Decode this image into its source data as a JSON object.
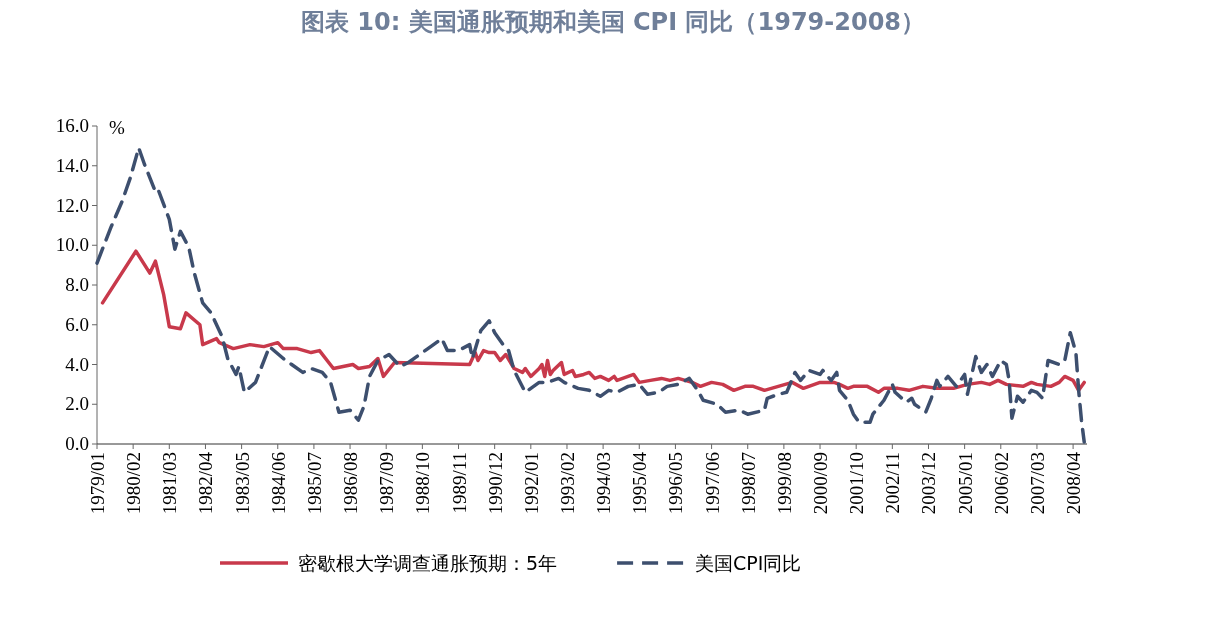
{
  "chart_data": {
    "type": "line",
    "title": "图表 10: 美国通胀预期和美国 CPI 同比（1979-2008）",
    "ylabel": "%",
    "legend": "bottom",
    "grid": false,
    "marker": "none",
    "xlim": [
      "1979-01",
      "2008-09"
    ],
    "ylim": [
      0,
      16
    ],
    "yticks": [
      {
        "value": 0,
        "label": "0.0"
      },
      {
        "value": 2,
        "label": "2.0"
      },
      {
        "value": 4,
        "label": "4.0"
      },
      {
        "value": 6,
        "label": "6.0"
      },
      {
        "value": 8,
        "label": "8.0"
      },
      {
        "value": 10,
        "label": "10.0"
      },
      {
        "value": 12,
        "label": "12.0"
      },
      {
        "value": 14,
        "label": "14.0"
      },
      {
        "value": 16,
        "label": "16.0"
      }
    ],
    "xticks": [
      {
        "value": "1979-01",
        "label": "1979/01"
      },
      {
        "value": "1980-02",
        "label": "1980/02"
      },
      {
        "value": "1981-03",
        "label": "1981/03"
      },
      {
        "value": "1982-04",
        "label": "1982/04"
      },
      {
        "value": "1983-05",
        "label": "1983/05"
      },
      {
        "value": "1984-06",
        "label": "1984/06"
      },
      {
        "value": "1985-07",
        "label": "1985/07"
      },
      {
        "value": "1986-08",
        "label": "1986/08"
      },
      {
        "value": "1987-09",
        "label": "1987/09"
      },
      {
        "value": "1988-10",
        "label": "1988/10"
      },
      {
        "value": "1989-11",
        "label": "1989/11"
      },
      {
        "value": "1990-12",
        "label": "1990/12"
      },
      {
        "value": "1992-01",
        "label": "1992/01"
      },
      {
        "value": "1993-02",
        "label": "1993/02"
      },
      {
        "value": "1994-03",
        "label": "1994/03"
      },
      {
        "value": "1995-04",
        "label": "1995/04"
      },
      {
        "value": "1996-05",
        "label": "1996/05"
      },
      {
        "value": "1997-06",
        "label": "1997/06"
      },
      {
        "value": "1998-07",
        "label": "1998/07"
      },
      {
        "value": "1999-08",
        "label": "1999/08"
      },
      {
        "value": "2000-09",
        "label": "2000/09"
      },
      {
        "value": "2001-10",
        "label": "2001/10"
      },
      {
        "value": "2002-11",
        "label": "2002/11"
      },
      {
        "value": "2003-12",
        "label": "2003/12"
      },
      {
        "value": "2005-01",
        "label": "2005/01"
      },
      {
        "value": "2006-02",
        "label": "2006/02"
      },
      {
        "value": "2007-03",
        "label": "2007/03"
      },
      {
        "value": "2008-04",
        "label": "2008/04"
      }
    ],
    "series": [
      {
        "name": "密歇根大学调查通胀预期：5年",
        "color": "#c8394b",
        "line_style": "solid",
        "x": [
          "1979-03",
          "1980-03",
          "1980-08",
          "1980-10",
          "1981-01",
          "1981-03",
          "1981-07",
          "1981-09",
          "1982-02",
          "1982-03",
          "1982-08",
          "1982-09",
          "1983-02",
          "1983-08",
          "1984-01",
          "1984-06",
          "1984-08",
          "1985-01",
          "1985-06",
          "1985-09",
          "1986-02",
          "1986-09",
          "1986-11",
          "1987-03",
          "1987-06",
          "1987-08",
          "1987-12",
          "1990-03",
          "1990-05",
          "1990-06",
          "1990-08",
          "1990-10",
          "1990-12",
          "1991-02",
          "1991-04",
          "1991-07",
          "1991-10",
          "1991-11",
          "1992-01",
          "1992-04",
          "1992-05",
          "1992-06",
          "1992-07",
          "1992-08",
          "1992-09",
          "1992-12",
          "1993-01",
          "1993-04",
          "1993-05",
          "1993-08",
          "1993-10",
          "1993-12",
          "1994-02",
          "1994-05",
          "1994-07",
          "1994-08",
          "1995-02",
          "1995-04",
          "1995-08",
          "1995-12",
          "1996-03",
          "1996-06",
          "1996-11",
          "1997-02",
          "1997-06",
          "1997-10",
          "1998-02",
          "1998-06",
          "1998-09",
          "1999-01",
          "1999-06",
          "1999-11",
          "2000-03",
          "2000-09",
          "2001-02",
          "2001-04",
          "2001-07",
          "2001-09",
          "2002-02",
          "2002-06",
          "2002-08",
          "2003-01",
          "2003-05",
          "2003-10",
          "2004-03",
          "2004-09",
          "2005-02",
          "2005-07",
          "2005-10",
          "2006-01",
          "2006-04",
          "2006-10",
          "2007-01",
          "2007-03",
          "2007-08",
          "2007-11",
          "2008-01",
          "2008-04",
          "2008-06",
          "2008-08"
        ],
        "values": [
          7.1,
          9.7,
          8.6,
          9.2,
          7.5,
          5.9,
          5.8,
          6.6,
          6.0,
          5.0,
          5.3,
          5.1,
          4.8,
          5.0,
          4.9,
          5.1,
          4.8,
          4.8,
          4.6,
          4.7,
          3.8,
          4.0,
          3.8,
          3.9,
          4.3,
          3.4,
          4.1,
          4.0,
          4.6,
          4.2,
          4.7,
          4.6,
          4.6,
          4.2,
          4.5,
          3.8,
          3.6,
          3.8,
          3.4,
          3.8,
          4.0,
          3.4,
          4.2,
          3.5,
          3.7,
          4.1,
          3.5,
          3.7,
          3.4,
          3.5,
          3.6,
          3.3,
          3.4,
          3.2,
          3.4,
          3.2,
          3.5,
          3.1,
          3.2,
          3.3,
          3.2,
          3.3,
          3.1,
          2.9,
          3.1,
          3.0,
          2.7,
          2.9,
          2.9,
          2.7,
          2.9,
          3.1,
          2.8,
          3.1,
          3.1,
          3.0,
          2.8,
          2.9,
          2.9,
          2.6,
          2.8,
          2.8,
          2.7,
          2.9,
          2.8,
          2.8,
          3.0,
          3.1,
          3.0,
          3.2,
          3.0,
          2.9,
          3.1,
          3.0,
          2.9,
          3.1,
          3.4,
          3.2,
          2.7,
          3.1
        ]
      },
      {
        "name": "美国CPI同比",
        "color": "#3d4f6e",
        "line_style": "dashed",
        "x": [
          "1979-01",
          "1979-06",
          "1979-10",
          "1980-01",
          "1980-04",
          "1980-06",
          "1980-10",
          "1980-11",
          "1981-03",
          "1981-05",
          "1981-07",
          "1981-10",
          "1981-12",
          "1982-03",
          "1982-06",
          "1982-10",
          "1982-12",
          "1983-03",
          "1983-04",
          "1983-06",
          "1983-10",
          "1984-03",
          "1984-08",
          "1984-11",
          "1985-03",
          "1985-06",
          "1985-10",
          "1986-01",
          "1986-04",
          "1986-08",
          "1986-11",
          "1987-01",
          "1987-03",
          "1987-06",
          "1987-10",
          "1988-02",
          "1988-05",
          "1988-12",
          "1989-05",
          "1989-07",
          "1989-11",
          "1990-03",
          "1990-04",
          "1990-07",
          "1990-10",
          "1990-12",
          "1991-03",
          "1991-05",
          "1991-07",
          "1991-11",
          "1992-04",
          "1992-07",
          "1992-11",
          "1993-01",
          "1993-06",
          "1993-10",
          "1994-02",
          "1994-05",
          "1994-08",
          "1994-12",
          "1995-04",
          "1995-07",
          "1995-11",
          "1996-02",
          "1996-06",
          "1996-10",
          "1997-01",
          "1997-03",
          "1997-08",
          "1997-11",
          "1998-04",
          "1998-07",
          "1999-01",
          "1999-02",
          "1999-06",
          "1999-09",
          "1999-12",
          "2000-02",
          "2000-05",
          "2000-09",
          "2000-10",
          "2001-01",
          "2001-03",
          "2001-04",
          "2001-07",
          "2001-09",
          "2001-11",
          "2002-03",
          "2002-04",
          "2002-08",
          "2002-11",
          "2002-12",
          "2003-04",
          "2003-06",
          "2003-07",
          "2003-11",
          "2004-01",
          "2004-03",
          "2004-04",
          "2004-07",
          "2004-10",
          "2005-01",
          "2005-02",
          "2005-05",
          "2005-07",
          "2005-09",
          "2005-11",
          "2006-02",
          "2006-04",
          "2006-05",
          "2006-06",
          "2006-08",
          "2006-10",
          "2007-01",
          "2007-03",
          "2007-05",
          "2007-07",
          "2007-11",
          "2008-01",
          "2008-03",
          "2008-05",
          "2008-06",
          "2008-07",
          "2008-08"
        ],
        "values": [
          9.1,
          10.9,
          12.2,
          13.4,
          14.9,
          14.1,
          12.7,
          12.8,
          11.3,
          9.8,
          10.7,
          9.9,
          8.6,
          7.1,
          6.6,
          5.4,
          4.3,
          3.5,
          3.9,
          2.6,
          3.1,
          4.9,
          4.3,
          4.0,
          3.6,
          3.8,
          3.6,
          3.1,
          1.6,
          1.7,
          1.2,
          1.9,
          3.4,
          4.2,
          4.5,
          3.9,
          4.1,
          4.8,
          5.3,
          4.7,
          4.7,
          5.0,
          4.3,
          5.7,
          6.2,
          5.6,
          5.0,
          4.7,
          3.7,
          2.6,
          3.1,
          3.1,
          3.3,
          3.1,
          2.8,
          2.7,
          2.4,
          2.7,
          2.6,
          2.9,
          3.0,
          2.5,
          2.6,
          2.9,
          3.0,
          3.3,
          2.7,
          2.2,
          2.0,
          1.6,
          1.7,
          1.5,
          1.7,
          2.3,
          2.5,
          2.6,
          3.6,
          3.2,
          3.7,
          3.5,
          3.7,
          3.2,
          3.6,
          2.7,
          2.2,
          1.5,
          1.1,
          1.1,
          1.5,
          2.2,
          3.0,
          2.6,
          2.1,
          2.3,
          2.0,
          1.6,
          2.3,
          3.2,
          2.9,
          3.4,
          2.9,
          3.5,
          2.5,
          4.4,
          3.6,
          4.0,
          3.4,
          4.2,
          4.0,
          3.2,
          1.3,
          2.4,
          2.1,
          2.7,
          2.6,
          2.3,
          4.2,
          4.0,
          4.2,
          5.6,
          4.6,
          2.7,
          1.2,
          0.1
        ]
      }
    ]
  }
}
